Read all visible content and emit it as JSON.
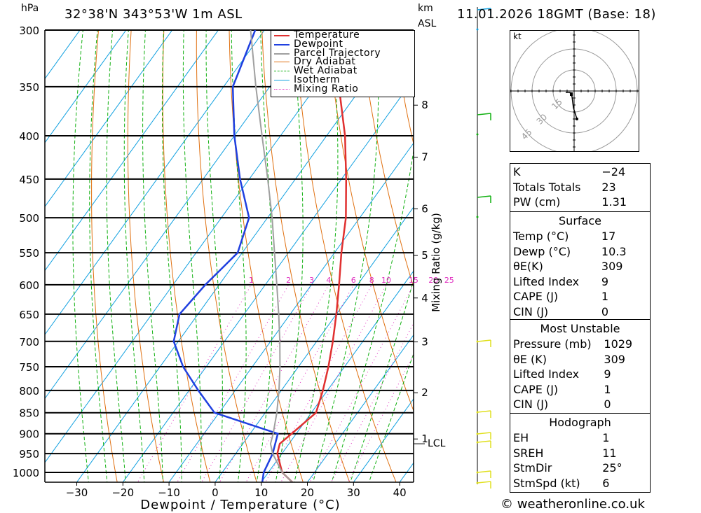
{
  "header": {
    "hpa_label": "hPa",
    "location": "32°38'N 343°53'W 1m ASL",
    "km_label": "km",
    "asl_label": "ASL",
    "datetime": "11.01.2026 18GMT (Base: 18)"
  },
  "chart_data": {
    "type": "skew-t",
    "xlabel": "Dewpoint / Temperature (°C)",
    "ylabel_left": "hPa",
    "mixing_ratio_axis_label": "Mixing Ratio (g/kg)",
    "x_ticks": [
      -30,
      -20,
      -10,
      0,
      10,
      20,
      30,
      40
    ],
    "pressure_levels": [
      300,
      350,
      400,
      450,
      500,
      550,
      600,
      650,
      700,
      750,
      800,
      850,
      900,
      950,
      1000
    ],
    "height_km_labels": [
      {
        "label": "8",
        "p": 368
      },
      {
        "label": "7",
        "p": 424
      },
      {
        "label": "6",
        "p": 488
      },
      {
        "label": "5",
        "p": 554
      },
      {
        "label": "4",
        "p": 622
      },
      {
        "label": "3",
        "p": 701
      },
      {
        "label": "2",
        "p": 805
      },
      {
        "label": "1",
        "p": 913
      }
    ],
    "lcl_label": "LCL",
    "lcl_pressure": 925,
    "mixing_ratio_labels": [
      "1",
      "2",
      "3",
      "4",
      "6",
      "8",
      "10",
      "15",
      "20",
      "25"
    ],
    "legend": [
      "Temperature",
      "Dewpoint",
      "Parcel Trajectory",
      "Dry Adiabat",
      "Wet Adiabat",
      "Isotherm",
      "Mixing Ratio"
    ],
    "series": [
      {
        "name": "Temperature",
        "color": "#e03030",
        "points": [
          [
            1029,
            17
          ],
          [
            1000,
            13
          ],
          [
            950,
            9
          ],
          [
            925,
            8
          ],
          [
            900,
            9
          ],
          [
            850,
            11
          ],
          [
            800,
            9
          ],
          [
            750,
            6.5
          ],
          [
            700,
            3.5
          ],
          [
            650,
            0
          ],
          [
            600,
            -4
          ],
          [
            550,
            -8.5
          ],
          [
            500,
            -13
          ],
          [
            450,
            -19
          ],
          [
            400,
            -26
          ],
          [
            350,
            -35
          ],
          [
            300,
            -45
          ]
        ]
      },
      {
        "name": "Dewpoint",
        "color": "#2040e0",
        "points": [
          [
            1029,
            10.3
          ],
          [
            1000,
            9
          ],
          [
            950,
            8
          ],
          [
            900,
            6
          ],
          [
            850,
            -11
          ],
          [
            800,
            -18
          ],
          [
            750,
            -25
          ],
          [
            700,
            -31
          ],
          [
            650,
            -34
          ],
          [
            600,
            -33
          ],
          [
            550,
            -31
          ],
          [
            500,
            -34
          ],
          [
            450,
            -42
          ],
          [
            400,
            -50
          ],
          [
            350,
            -58
          ],
          [
            300,
            -62
          ]
        ]
      },
      {
        "name": "Parcel Trajectory",
        "color": "#a0a0a0",
        "points": [
          [
            1029,
            17
          ],
          [
            1000,
            13
          ],
          [
            950,
            8
          ],
          [
            925,
            6
          ],
          [
            900,
            5
          ],
          [
            850,
            2.5
          ],
          [
            800,
            -0.5
          ],
          [
            750,
            -4
          ],
          [
            700,
            -8
          ],
          [
            650,
            -12.5
          ],
          [
            600,
            -17.5
          ],
          [
            550,
            -23
          ],
          [
            500,
            -29
          ],
          [
            450,
            -36
          ],
          [
            400,
            -44
          ],
          [
            350,
            -53
          ],
          [
            300,
            -63
          ]
        ]
      }
    ],
    "colors": {
      "temperature": "#e03030",
      "dewpoint": "#2040e0",
      "parcel": "#a0a0a0",
      "dry_adiabat": "#e07010",
      "wet_adiabat": "#10b010",
      "isotherm": "#10a0e0",
      "mixing_ratio": "#e030c0"
    }
  },
  "hodograph": {
    "unit": "kt",
    "ring_labels": [
      "15",
      "30",
      "45"
    ]
  },
  "indices": {
    "top": [
      {
        "label": "K",
        "value": "-24"
      },
      {
        "label": "Totals Totals",
        "value": "23"
      },
      {
        "label": "PW (cm)",
        "value": "1.31"
      }
    ],
    "surface_title": "Surface",
    "surface": [
      {
        "label": "Temp (°C)",
        "value": "17"
      },
      {
        "label": "Dewp (°C)",
        "value": "10.3"
      },
      {
        "label": "θE(K)",
        "value": "309"
      },
      {
        "label": "Lifted Index",
        "value": "9"
      },
      {
        "label": "CAPE (J)",
        "value": "1"
      },
      {
        "label": "CIN (J)",
        "value": "0"
      }
    ],
    "mu_title": "Most Unstable",
    "mu": [
      {
        "label": "Pressure (mb)",
        "value": "1029"
      },
      {
        "label": "θE (K)",
        "value": "309"
      },
      {
        "label": "Lifted Index",
        "value": "9"
      },
      {
        "label": "CAPE (J)",
        "value": "1"
      },
      {
        "label": "CIN (J)",
        "value": "0"
      }
    ],
    "hodo_title": "Hodograph",
    "hodo": [
      {
        "label": "EH",
        "value": "1"
      },
      {
        "label": "SREH",
        "value": "11"
      },
      {
        "label": "StmDir",
        "value": "25°"
      },
      {
        "label": "StmSpd (kt)",
        "value": "6"
      }
    ]
  },
  "footer": {
    "copyright": "© weatheronline.co.uk"
  }
}
